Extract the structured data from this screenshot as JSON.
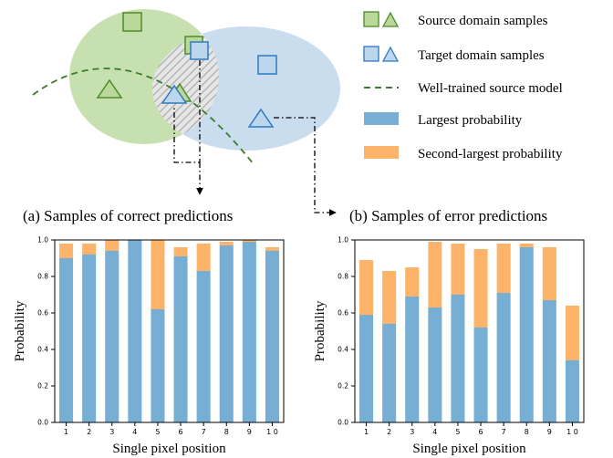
{
  "colors": {
    "source_green": "#c7e0b0",
    "source_edge": "#4d8a2a",
    "target_blue": "#c9ddef",
    "target_edge": "#2f7ac0",
    "largest": "#76aed4",
    "second": "#fdb46a",
    "hatch": "#bdbdbd",
    "boundary": "#3b7d2b"
  },
  "legend": {
    "source": "Source domain samples",
    "target": "Target domain samples",
    "model": "Well-trained source model",
    "largest": "Largest probability",
    "second": "Second-largest probability"
  },
  "captions": {
    "a": "(a) Samples of correct predictions",
    "b": "(b) Samples of error predictions"
  },
  "chart_data": [
    {
      "type": "bar",
      "stacked": true,
      "categories": [
        "1",
        "2",
        "3",
        "4",
        "5",
        "6",
        "7",
        "8",
        "9",
        "1 0"
      ],
      "series": [
        {
          "name": "Largest probability",
          "values": [
            0.9,
            0.92,
            0.94,
            1.0,
            0.62,
            0.91,
            0.83,
            0.97,
            0.99,
            0.94
          ]
        },
        {
          "name": "Second-largest probability",
          "values": [
            0.08,
            0.06,
            0.06,
            0.0,
            0.38,
            0.05,
            0.15,
            0.02,
            0.01,
            0.02
          ]
        }
      ],
      "xlabel": "Single pixel position",
      "ylabel": "Probability",
      "ylim": [
        0,
        1.0
      ],
      "yticks": [
        "0.0",
        "0.2",
        "0.4",
        "0.6",
        "0.8",
        "1.0"
      ]
    },
    {
      "type": "bar",
      "stacked": true,
      "categories": [
        "1",
        "2",
        "3",
        "4",
        "5",
        "6",
        "7",
        "8",
        "9",
        "1 0"
      ],
      "series": [
        {
          "name": "Largest probability",
          "values": [
            0.59,
            0.54,
            0.69,
            0.63,
            0.7,
            0.52,
            0.71,
            0.96,
            0.67,
            0.34
          ]
        },
        {
          "name": "Second-largest probability",
          "values": [
            0.3,
            0.29,
            0.16,
            0.36,
            0.28,
            0.43,
            0.27,
            0.02,
            0.29,
            0.3
          ]
        }
      ],
      "xlabel": "Single pixel position",
      "ylabel": "Probability",
      "ylim": [
        0,
        1.0
      ],
      "yticks": [
        "0.0",
        "0.2",
        "0.4",
        "0.6",
        "0.8",
        "1.0"
      ]
    }
  ]
}
